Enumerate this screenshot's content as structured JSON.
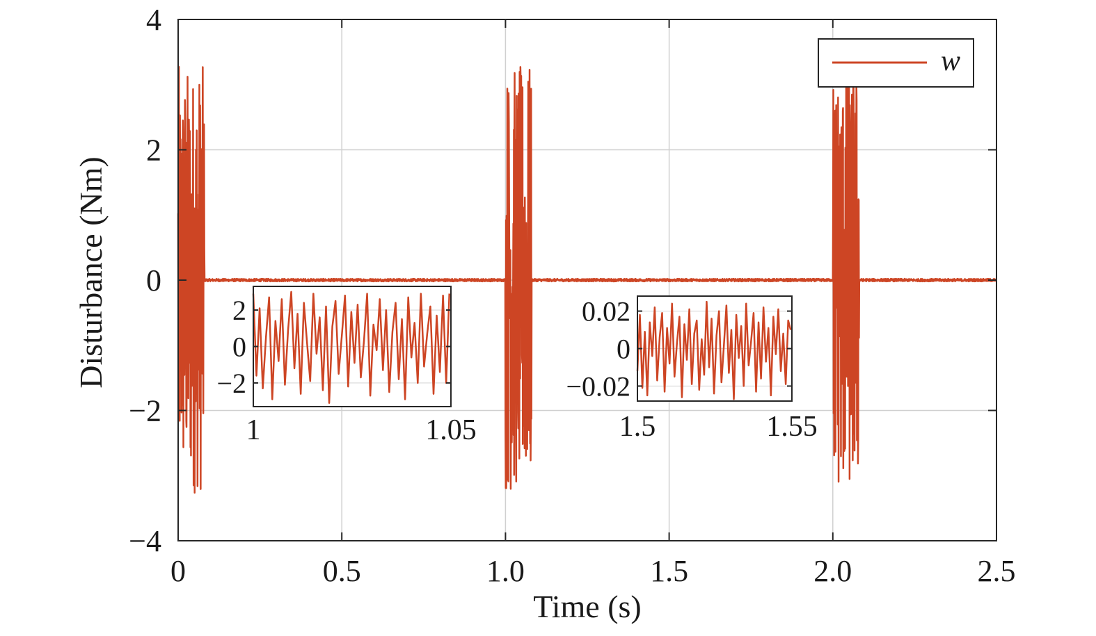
{
  "chart_data": [
    {
      "id": "main",
      "type": "line",
      "xlabel": "Time (s)",
      "ylabel": "Disturbance (Nm)",
      "xlim": [
        0,
        2.5
      ],
      "ylim": [
        -4,
        4
      ],
      "xticks": [
        0,
        0.5,
        1.0,
        1.5,
        2.0,
        2.5
      ],
      "xtick_labels": [
        "0",
        "0.5",
        "1.0",
        "1.5",
        "2.0",
        "2.5"
      ],
      "yticks": [
        -4,
        -2,
        0,
        2,
        4
      ],
      "ytick_labels": [
        "−4",
        "−2",
        "0",
        "2",
        "4"
      ],
      "grid": true,
      "legend": {
        "position": "top-right",
        "entries": [
          "w"
        ]
      },
      "series": [
        {
          "name": "w",
          "color": "#cd4524",
          "description_values": {
            "bursts": [
              {
                "start": 0.0,
                "end": 0.08,
                "amplitude": 3.3
              },
              {
                "start": 1.0,
                "end": 1.08,
                "amplitude": 3.3
              },
              {
                "start": 2.0,
                "end": 2.08,
                "amplitude": 3.3
              }
            ],
            "quiet_amplitude": 0.02
          }
        }
      ]
    },
    {
      "id": "inset1",
      "type": "line",
      "xlim": [
        1.0,
        1.05
      ],
      "ylim": [
        -3.3,
        3.3
      ],
      "xticks": [
        1.0,
        1.05
      ],
      "xtick_labels": [
        "1",
        "1.05"
      ],
      "yticks": [
        2,
        0,
        -2
      ],
      "ytick_labels": [
        "2",
        "0",
        "−2"
      ],
      "grid": true,
      "series": [
        {
          "name": "w",
          "color": "#cd4524",
          "x": [
            1.0,
            1.0008,
            1.0016,
            1.0024,
            1.0032,
            1.004,
            1.0048,
            1.0056,
            1.0064,
            1.0072,
            1.008,
            1.0088,
            1.0096,
            1.0104,
            1.0112,
            1.012,
            1.0128,
            1.0136,
            1.0144,
            1.0152,
            1.016,
            1.0168,
            1.0176,
            1.0184,
            1.0192,
            1.02,
            1.0208,
            1.0216,
            1.0224,
            1.0232,
            1.024,
            1.0248,
            1.0256,
            1.0264,
            1.0272,
            1.028,
            1.0288,
            1.0296,
            1.0304,
            1.0312,
            1.032,
            1.0328,
            1.0336,
            1.0344,
            1.0352,
            1.036,
            1.0368,
            1.0376,
            1.0384,
            1.0392,
            1.04,
            1.0408,
            1.0416,
            1.0424,
            1.0432,
            1.044,
            1.0448,
            1.0456,
            1.0464,
            1.0472,
            1.048,
            1.0488,
            1.0496
          ],
          "y": [
            2.9,
            -1.6,
            2.1,
            -2.3,
            0.5,
            2.7,
            -2.9,
            1.4,
            -0.8,
            2.6,
            -2.1,
            0.9,
            3.0,
            -1.2,
            1.8,
            -2.6,
            2.4,
            0.2,
            -1.9,
            2.9,
            -0.4,
            1.6,
            -2.4,
            2.2,
            -3.1,
            1.1,
            2.5,
            -1.5,
            0.6,
            2.8,
            -2.2,
            1.9,
            -0.9,
            2.3,
            -1.7,
            0.3,
            2.9,
            -2.7,
            1.2,
            -0.2,
            2.6,
            -1.3,
            2.0,
            -2.5,
            0.8,
            2.4,
            -1.8,
            1.5,
            -2.9,
            2.7,
            -0.6,
            1.3,
            -2.0,
            2.9,
            -1.1,
            0.7,
            2.2,
            -2.6,
            1.7,
            -1.4,
            2.8,
            -2.0,
            2.9
          ]
        }
      ]
    },
    {
      "id": "inset2",
      "type": "line",
      "xlim": [
        1.5,
        1.55
      ],
      "ylim": [
        -0.028,
        0.028
      ],
      "xticks": [
        1.5,
        1.55
      ],
      "xtick_labels": [
        "1.5",
        "1.55"
      ],
      "yticks": [
        0.02,
        0,
        -0.02
      ],
      "ytick_labels": [
        "0.02",
        "0",
        "−0.02"
      ],
      "grid": true,
      "series": [
        {
          "name": "w",
          "color": "#cd4524",
          "x": [
            1.5,
            1.5008,
            1.5016,
            1.5024,
            1.5032,
            1.504,
            1.5048,
            1.5056,
            1.5064,
            1.5072,
            1.508,
            1.5088,
            1.5096,
            1.5104,
            1.5112,
            1.512,
            1.5128,
            1.5136,
            1.5144,
            1.5152,
            1.516,
            1.5168,
            1.5176,
            1.5184,
            1.5192,
            1.52,
            1.5208,
            1.5216,
            1.5224,
            1.5232,
            1.524,
            1.5248,
            1.5256,
            1.5264,
            1.5272,
            1.528,
            1.5288,
            1.5296,
            1.5304,
            1.5312,
            1.532,
            1.5328,
            1.5336,
            1.5344,
            1.5352,
            1.536,
            1.5368,
            1.5376,
            1.5384,
            1.5392,
            1.54,
            1.5408,
            1.5416,
            1.5424,
            1.5432,
            1.544,
            1.5448,
            1.5456,
            1.5464,
            1.5472,
            1.548,
            1.5488,
            1.5496
          ],
          "y": [
            -0.012,
            0.018,
            -0.021,
            0.009,
            -0.025,
            0.014,
            -0.004,
            0.022,
            -0.017,
            0.006,
            0.019,
            -0.023,
            0.011,
            -0.008,
            0.024,
            -0.015,
            0.003,
            0.017,
            -0.026,
            0.013,
            -0.006,
            0.021,
            -0.019,
            0.008,
            0.015,
            -0.022,
            0.005,
            -0.014,
            0.025,
            -0.01,
            0.016,
            -0.024,
            0.007,
            0.02,
            -0.018,
            0.002,
            0.023,
            -0.013,
            0.01,
            -0.027,
            0.018,
            -0.005,
            0.012,
            -0.02,
            0.024,
            -0.009,
            0.004,
            0.019,
            -0.023,
            0.014,
            -0.016,
            0.022,
            -0.007,
            0.011,
            -0.025,
            0.017,
            -0.003,
            0.021,
            -0.012,
            0.008,
            -0.019,
            0.015,
            0.01
          ]
        }
      ]
    }
  ]
}
